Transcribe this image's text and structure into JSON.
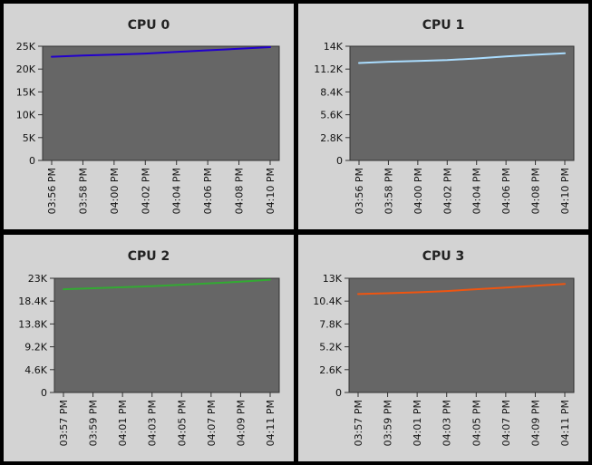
{
  "chart_data": [
    {
      "type": "line",
      "title": "CPU 0",
      "x": [
        "03:56 PM",
        "03:58 PM",
        "04:00 PM",
        "04:02 PM",
        "04:04 PM",
        "04:06 PM",
        "04:08 PM",
        "04:10 PM"
      ],
      "ylim": [
        0,
        25000
      ],
      "yticks": [
        "0",
        "5K",
        "10K",
        "15K",
        "20K",
        "25K"
      ],
      "series": [
        {
          "color": "#2200cc",
          "values": [
            22700,
            22950,
            23150,
            23400,
            23750,
            24100,
            24450,
            24800
          ]
        }
      ],
      "plot_bg": "#666666",
      "grid": false
    },
    {
      "type": "line",
      "title": "CPU 1",
      "x": [
        "03:56 PM",
        "03:58 PM",
        "04:00 PM",
        "04:02 PM",
        "04:04 PM",
        "04:06 PM",
        "04:08 PM",
        "04:10 PM"
      ],
      "ylim": [
        0,
        14000
      ],
      "yticks": [
        "0",
        "2.8K",
        "5.6K",
        "8.4K",
        "11.2K",
        "14K"
      ],
      "series": [
        {
          "color": "#aaddff",
          "values": [
            11950,
            12100,
            12200,
            12300,
            12500,
            12750,
            12950,
            13150
          ]
        }
      ],
      "plot_bg": "#666666",
      "grid": false
    },
    {
      "type": "line",
      "title": "CPU 2",
      "x": [
        "03:57 PM",
        "03:59 PM",
        "04:01 PM",
        "04:03 PM",
        "04:05 PM",
        "04:07 PM",
        "04:09 PM",
        "04:11 PM"
      ],
      "ylim": [
        0,
        23000
      ],
      "yticks": [
        "0",
        "4.6K",
        "9.2K",
        "13.8K",
        "18.4K",
        "23K"
      ],
      "series": [
        {
          "color": "#33aa33",
          "values": [
            20800,
            21000,
            21200,
            21400,
            21700,
            22000,
            22300,
            22700
          ]
        }
      ],
      "plot_bg": "#666666",
      "grid": false
    },
    {
      "type": "line",
      "title": "CPU 3",
      "x": [
        "03:57 PM",
        "03:59 PM",
        "04:01 PM",
        "04:03 PM",
        "04:05 PM",
        "04:07 PM",
        "04:09 PM",
        "04:11 PM"
      ],
      "ylim": [
        0,
        13000
      ],
      "yticks": [
        "0",
        "2.6K",
        "5.2K",
        "7.8K",
        "10.4K",
        "13K"
      ],
      "series": [
        {
          "color": "#ee5511",
          "values": [
            11200,
            11300,
            11400,
            11550,
            11750,
            11950,
            12150,
            12350
          ]
        }
      ],
      "plot_bg": "#666666",
      "grid": false
    }
  ]
}
